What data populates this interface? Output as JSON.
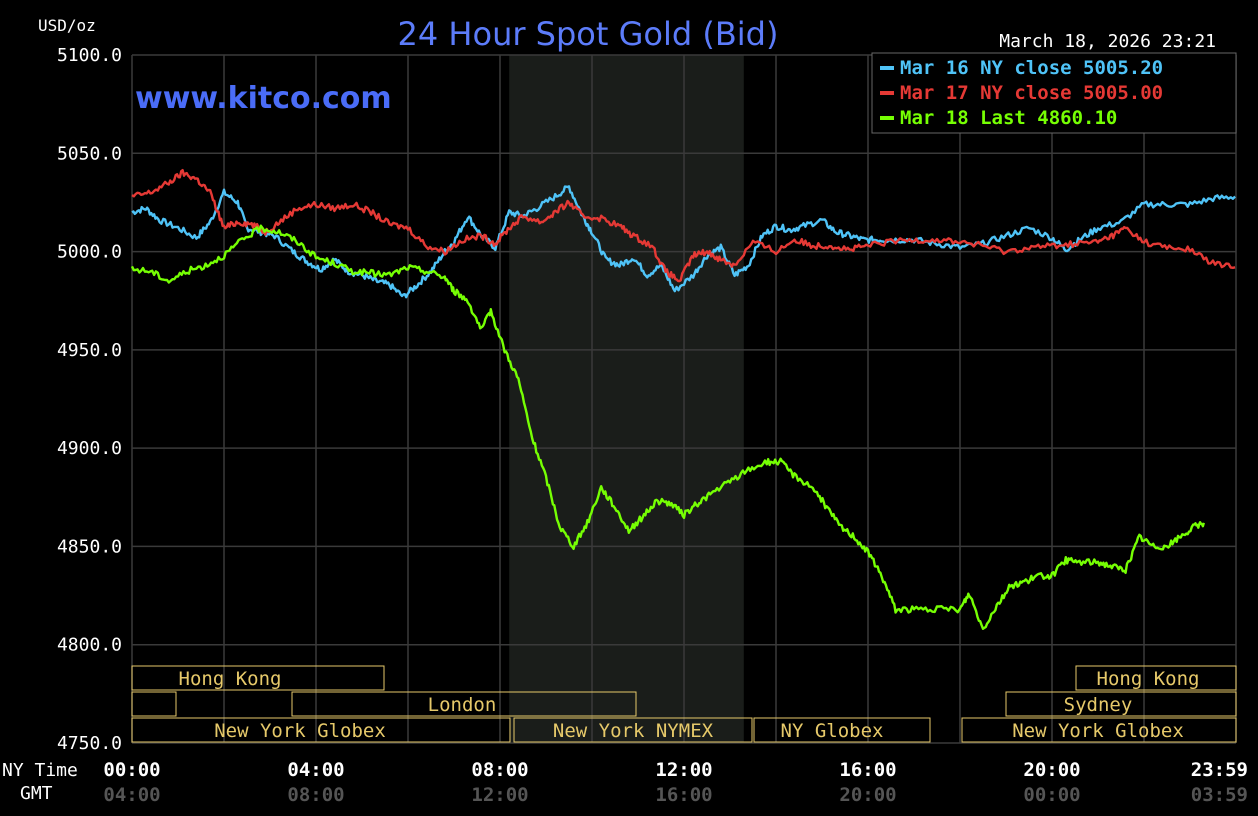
{
  "header": {
    "title": "24 Hour Spot Gold (Bid)",
    "units": "USD/oz",
    "timestamp": "March 18, 2026 23:21",
    "website": "www.kitco.com"
  },
  "legend": [
    {
      "text": "Mar 16 NY close 5005.20",
      "color": "#4fc3f7"
    },
    {
      "text": "Mar 17 NY close 5005.00",
      "color": "#e53935"
    },
    {
      "text": "Mar 18 Last 4860.10",
      "color": "#76ff03"
    }
  ],
  "axes": {
    "x_row1_label": "NY Time",
    "x_row2_label": "GMT",
    "ny_ticks": [
      "00:00",
      "04:00",
      "08:00",
      "12:00",
      "16:00",
      "20:00",
      "23:59"
    ],
    "gmt_ticks": [
      "04:00",
      "08:00",
      "12:00",
      "16:00",
      "20:00",
      "00:00",
      "03:59"
    ]
  },
  "sessions": {
    "hong_kong_1": "Hong Kong",
    "london": "London",
    "ny_globex_1": "New York Globex",
    "ny_nymex": "New York NYMEX",
    "ny_globex_2": "NY Globex",
    "hong_kong_2": "Hong Kong",
    "sydney": "Sydney",
    "ny_globex_3": "New York Globex"
  },
  "colors": {
    "background": "#000000",
    "grid": "#3a3a3a",
    "title": "#5c7cfa",
    "website": "#4a6cf7",
    "session_text": "#e6c96a",
    "session_box": "#e6c96a",
    "nymex_shade": "#1a1d1a",
    "axis_text": "#ffffff",
    "gmt_text": "#555555",
    "mar16": "#4fc3f7",
    "mar17": "#e53935",
    "mar18": "#76ff03"
  },
  "chart_data": {
    "type": "line",
    "title": "24 Hour Spot Gold (Bid)",
    "ylabel": "USD/oz",
    "xlabel": "NY Time",
    "ylim": [
      4750,
      5100
    ],
    "xlim": [
      0,
      24
    ],
    "y_ticks": [
      4750,
      4800,
      4850,
      4900,
      4950,
      5000,
      5050,
      5100
    ],
    "y_tick_labels": [
      "4750.0",
      "4800.0",
      "4850.0",
      "4900.0",
      "4950.0",
      "5000.0",
      "5050.0",
      "5100.0"
    ],
    "grid": true,
    "legend_position": "top-right",
    "series": [
      {
        "name": "Mar 16 NY close 5005.20",
        "color": "#4fc3f7",
        "x": [
          0,
          0.3,
          0.6,
          1.0,
          1.4,
          1.7,
          2.0,
          2.3,
          2.5,
          2.8,
          3.1,
          3.5,
          3.8,
          4.1,
          4.4,
          4.7,
          5.0,
          5.3,
          5.6,
          5.9,
          6.2,
          6.5,
          6.8,
          7.0,
          7.3,
          7.6,
          7.9,
          8.2,
          8.5,
          8.8,
          9.2,
          9.5,
          9.8,
          10.0,
          10.3,
          10.6,
          10.9,
          11.2,
          11.5,
          11.8,
          12.2,
          12.5,
          12.8,
          13.1,
          13.4,
          13.7,
          14.0,
          14.3,
          14.6,
          15.0,
          15.3,
          15.6,
          15.9,
          16.2,
          16.5,
          17.0,
          17.5,
          18.0,
          18.5,
          19.0,
          19.5,
          20.0,
          20.3,
          20.6,
          21.0,
          21.5,
          22.0,
          22.5,
          23.0,
          23.5,
          23.98
        ],
        "values": [
          5020,
          5022,
          5016,
          5012,
          5007,
          5015,
          5030,
          5025,
          5012,
          5010,
          5008,
          5000,
          4995,
          4991,
          4996,
          4990,
          4988,
          4985,
          4983,
          4977,
          4983,
          4990,
          5000,
          5005,
          5018,
          5008,
          5002,
          5020,
          5018,
          5022,
          5028,
          5033,
          5018,
          5010,
          4996,
          4993,
          4997,
          4988,
          4993,
          4980,
          4988,
          4998,
          5002,
          4988,
          4993,
          5008,
          5013,
          5011,
          5013,
          5016,
          5010,
          5008,
          5006,
          5006,
          5006,
          5006,
          5004,
          5002,
          5004,
          5008,
          5012,
          5007,
          5001,
          5006,
          5012,
          5015,
          5024,
          5024,
          5024,
          5027,
          5028
        ]
      },
      {
        "name": "Mar 17 NY close 5005.00",
        "color": "#e53935",
        "x": [
          0,
          0.4,
          0.8,
          1.1,
          1.4,
          1.7,
          2.0,
          2.3,
          2.6,
          2.9,
          3.2,
          3.6,
          4.0,
          4.4,
          4.8,
          5.2,
          5.6,
          6.0,
          6.4,
          6.8,
          7.2,
          7.6,
          7.9,
          8.2,
          8.5,
          8.9,
          9.2,
          9.5,
          9.8,
          10.2,
          10.6,
          10.9,
          11.3,
          11.6,
          11.9,
          12.2,
          12.5,
          12.8,
          13.1,
          13.5,
          14.0,
          14.4,
          14.8,
          15.2,
          15.6,
          16.0,
          16.5,
          17.0,
          17.5,
          18.0,
          18.5,
          19.0,
          19.5,
          20.0,
          20.5,
          21.0,
          21.3,
          21.6,
          22.0,
          22.5,
          23.0,
          23.5,
          23.98
        ],
        "values": [
          5028,
          5030,
          5035,
          5040,
          5037,
          5030,
          5012,
          5015,
          5014,
          5010,
          5015,
          5022,
          5024,
          5022,
          5024,
          5020,
          5014,
          5012,
          5003,
          5000,
          5006,
          5008,
          5004,
          5012,
          5018,
          5015,
          5020,
          5025,
          5018,
          5017,
          5013,
          5008,
          5003,
          4990,
          4985,
          4998,
          5000,
          4996,
          4993,
          5005,
          5000,
          5006,
          5003,
          5003,
          5001,
          5003,
          5005,
          5006,
          5006,
          5005,
          5003,
          5000,
          5002,
          5003,
          5004,
          5005,
          5008,
          5012,
          5005,
          5002,
          5001,
          4994,
          4992
        ]
      },
      {
        "name": "Mar 18 Last 4860.10",
        "color": "#76ff03",
        "x": [
          0,
          0.4,
          0.8,
          1.2,
          1.6,
          2.0,
          2.4,
          2.8,
          3.2,
          3.6,
          4.0,
          4.4,
          4.8,
          5.2,
          5.6,
          6.0,
          6.4,
          6.8,
          7.0,
          7.3,
          7.6,
          7.8,
          8.1,
          8.4,
          8.7,
          9.0,
          9.3,
          9.6,
          9.9,
          10.2,
          10.5,
          10.8,
          11.1,
          11.4,
          11.7,
          12.0,
          12.3,
          12.6,
          13.0,
          13.4,
          13.8,
          14.1,
          14.4,
          14.8,
          15.1,
          15.4,
          15.7,
          16.0,
          16.3,
          16.6,
          17.0,
          17.5,
          18.0,
          18.2,
          18.5,
          18.8,
          19.1,
          19.4,
          19.7,
          20.0,
          20.3,
          20.6,
          21.0,
          21.3,
          21.6,
          21.9,
          22.2,
          22.5,
          22.8,
          23.1,
          23.3
        ],
        "values": [
          4991,
          4990,
          4985,
          4990,
          4993,
          4998,
          5006,
          5012,
          5010,
          5005,
          4997,
          4994,
          4990,
          4989,
          4988,
          4992,
          4990,
          4987,
          4980,
          4975,
          4960,
          4970,
          4950,
          4935,
          4905,
          4885,
          4860,
          4850,
          4862,
          4880,
          4870,
          4858,
          4865,
          4873,
          4872,
          4866,
          4872,
          4877,
          4883,
          4889,
          4893,
          4893,
          4886,
          4880,
          4870,
          4860,
          4855,
          4847,
          4835,
          4818,
          4818,
          4818,
          4818,
          4826,
          4808,
          4820,
          4830,
          4832,
          4835,
          4835,
          4843,
          4842,
          4842,
          4840,
          4838,
          4855,
          4850,
          4850,
          4855,
          4860,
          4862
        ]
      }
    ]
  }
}
